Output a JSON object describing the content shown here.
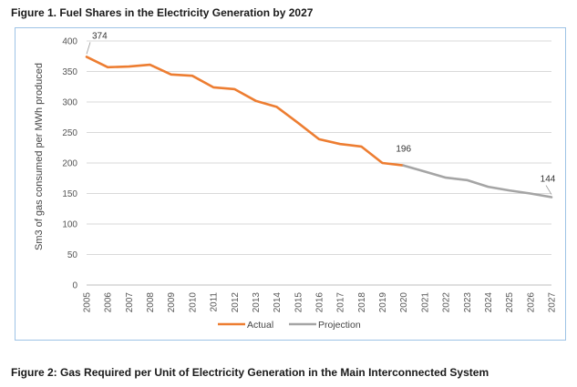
{
  "figure1_title": "Figure 1. Fuel Shares in the Electricity Generation by 2027",
  "figure2_title": "Figure 2: Gas Required per Unit of Electricity Generation in the Main Interconnected System",
  "chart_data": {
    "type": "line",
    "ylabel": "Sm3 of gas consumed per MWh produced",
    "xlabel": "",
    "ylim": [
      0,
      400
    ],
    "y_ticks": [
      0,
      50,
      100,
      150,
      200,
      250,
      300,
      350,
      400
    ],
    "categories": [
      "2005",
      "2006",
      "2007",
      "2008",
      "2009",
      "2010",
      "2011",
      "2012",
      "2013",
      "2014",
      "2015",
      "2016",
      "2017",
      "2018",
      "2019",
      "2020",
      "2021",
      "2022",
      "2023",
      "2024",
      "2025",
      "2026",
      "2027"
    ],
    "series": [
      {
        "name": "Actual",
        "color": "#ed7d31",
        "x": [
          "2005",
          "2006",
          "2007",
          "2008",
          "2009",
          "2010",
          "2011",
          "2012",
          "2013",
          "2014",
          "2015",
          "2016",
          "2017",
          "2018",
          "2019",
          "2020"
        ],
        "values": [
          374,
          357,
          358,
          361,
          345,
          343,
          324,
          321,
          302,
          292,
          266,
          239,
          231,
          227,
          200,
          196
        ]
      },
      {
        "name": "Projection",
        "color": "#a5a5a5",
        "x": [
          "2020",
          "2021",
          "2022",
          "2023",
          "2024",
          "2025",
          "2026",
          "2027"
        ],
        "values": [
          196,
          186,
          176,
          172,
          161,
          155,
          150,
          144
        ]
      }
    ],
    "data_labels": [
      {
        "x": "2005",
        "value": "374"
      },
      {
        "x": "2020",
        "value": "196"
      },
      {
        "x": "2027",
        "value": "144"
      }
    ],
    "grid": true,
    "legend_position": "bottom"
  }
}
